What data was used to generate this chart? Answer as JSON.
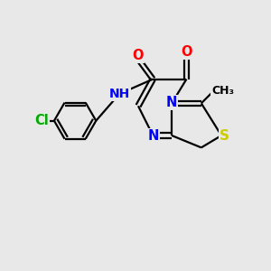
{
  "bg_color": "#e8e8e8",
  "bond_color": "#000000",
  "bond_width": 1.6,
  "atom_colors": {
    "N": "#0000ff",
    "O": "#ff0000",
    "S": "#cccc00",
    "Cl": "#00aa00"
  },
  "font_size": 10.5,
  "fig_width": 3.0,
  "fig_height": 3.0,
  "dpi": 100
}
